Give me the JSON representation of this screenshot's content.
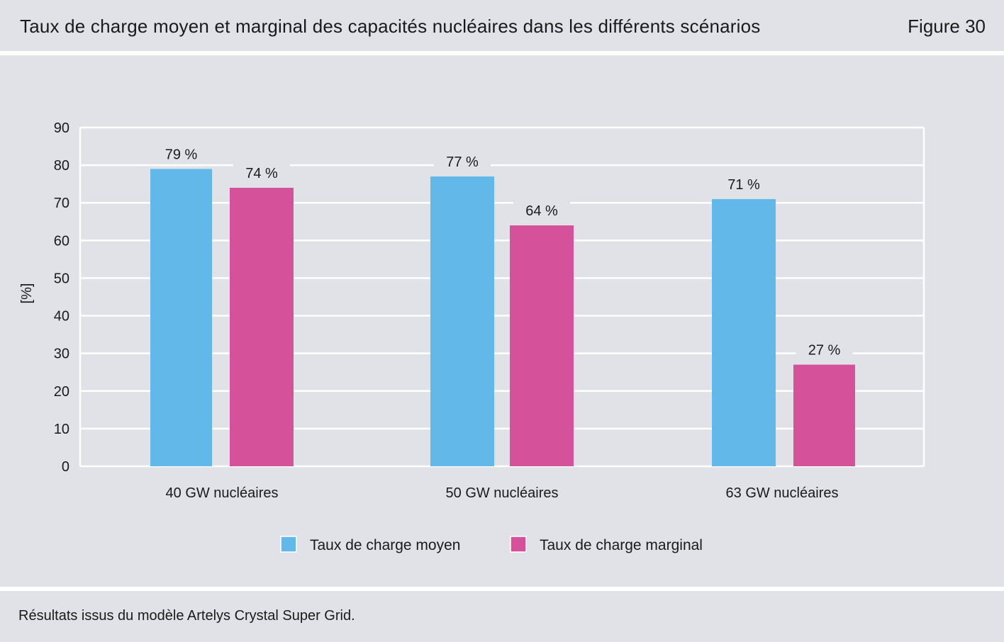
{
  "header": {
    "title": "Taux de charge moyen et marginal des capacités nucléaires dans les différents scénarios",
    "figure_label": "Figure 30"
  },
  "footer": {
    "source": "Résultats issus du modèle Artelys Crystal Super Grid."
  },
  "chart_data": {
    "type": "bar",
    "title": "",
    "xlabel": "",
    "ylabel": "[%]",
    "ylim": [
      0,
      90
    ],
    "yticks": [
      0,
      10,
      20,
      30,
      40,
      50,
      60,
      70,
      80,
      90
    ],
    "grid": true,
    "legend_position": "bottom",
    "categories": [
      "40 GW nucléaires",
      "50 GW nucléaires",
      "63 GW nucléaires"
    ],
    "series": [
      {
        "name": "Taux de charge moyen",
        "values": [
          79,
          77,
          71
        ],
        "labels": [
          "79 %",
          "77 %",
          "71 %"
        ],
        "color": "#62b8e8"
      },
      {
        "name": "Taux de charge marginal",
        "values": [
          74,
          64,
          27
        ],
        "labels": [
          "74 %",
          "64 %",
          "27 %"
        ],
        "color": "#d55199"
      }
    ]
  }
}
